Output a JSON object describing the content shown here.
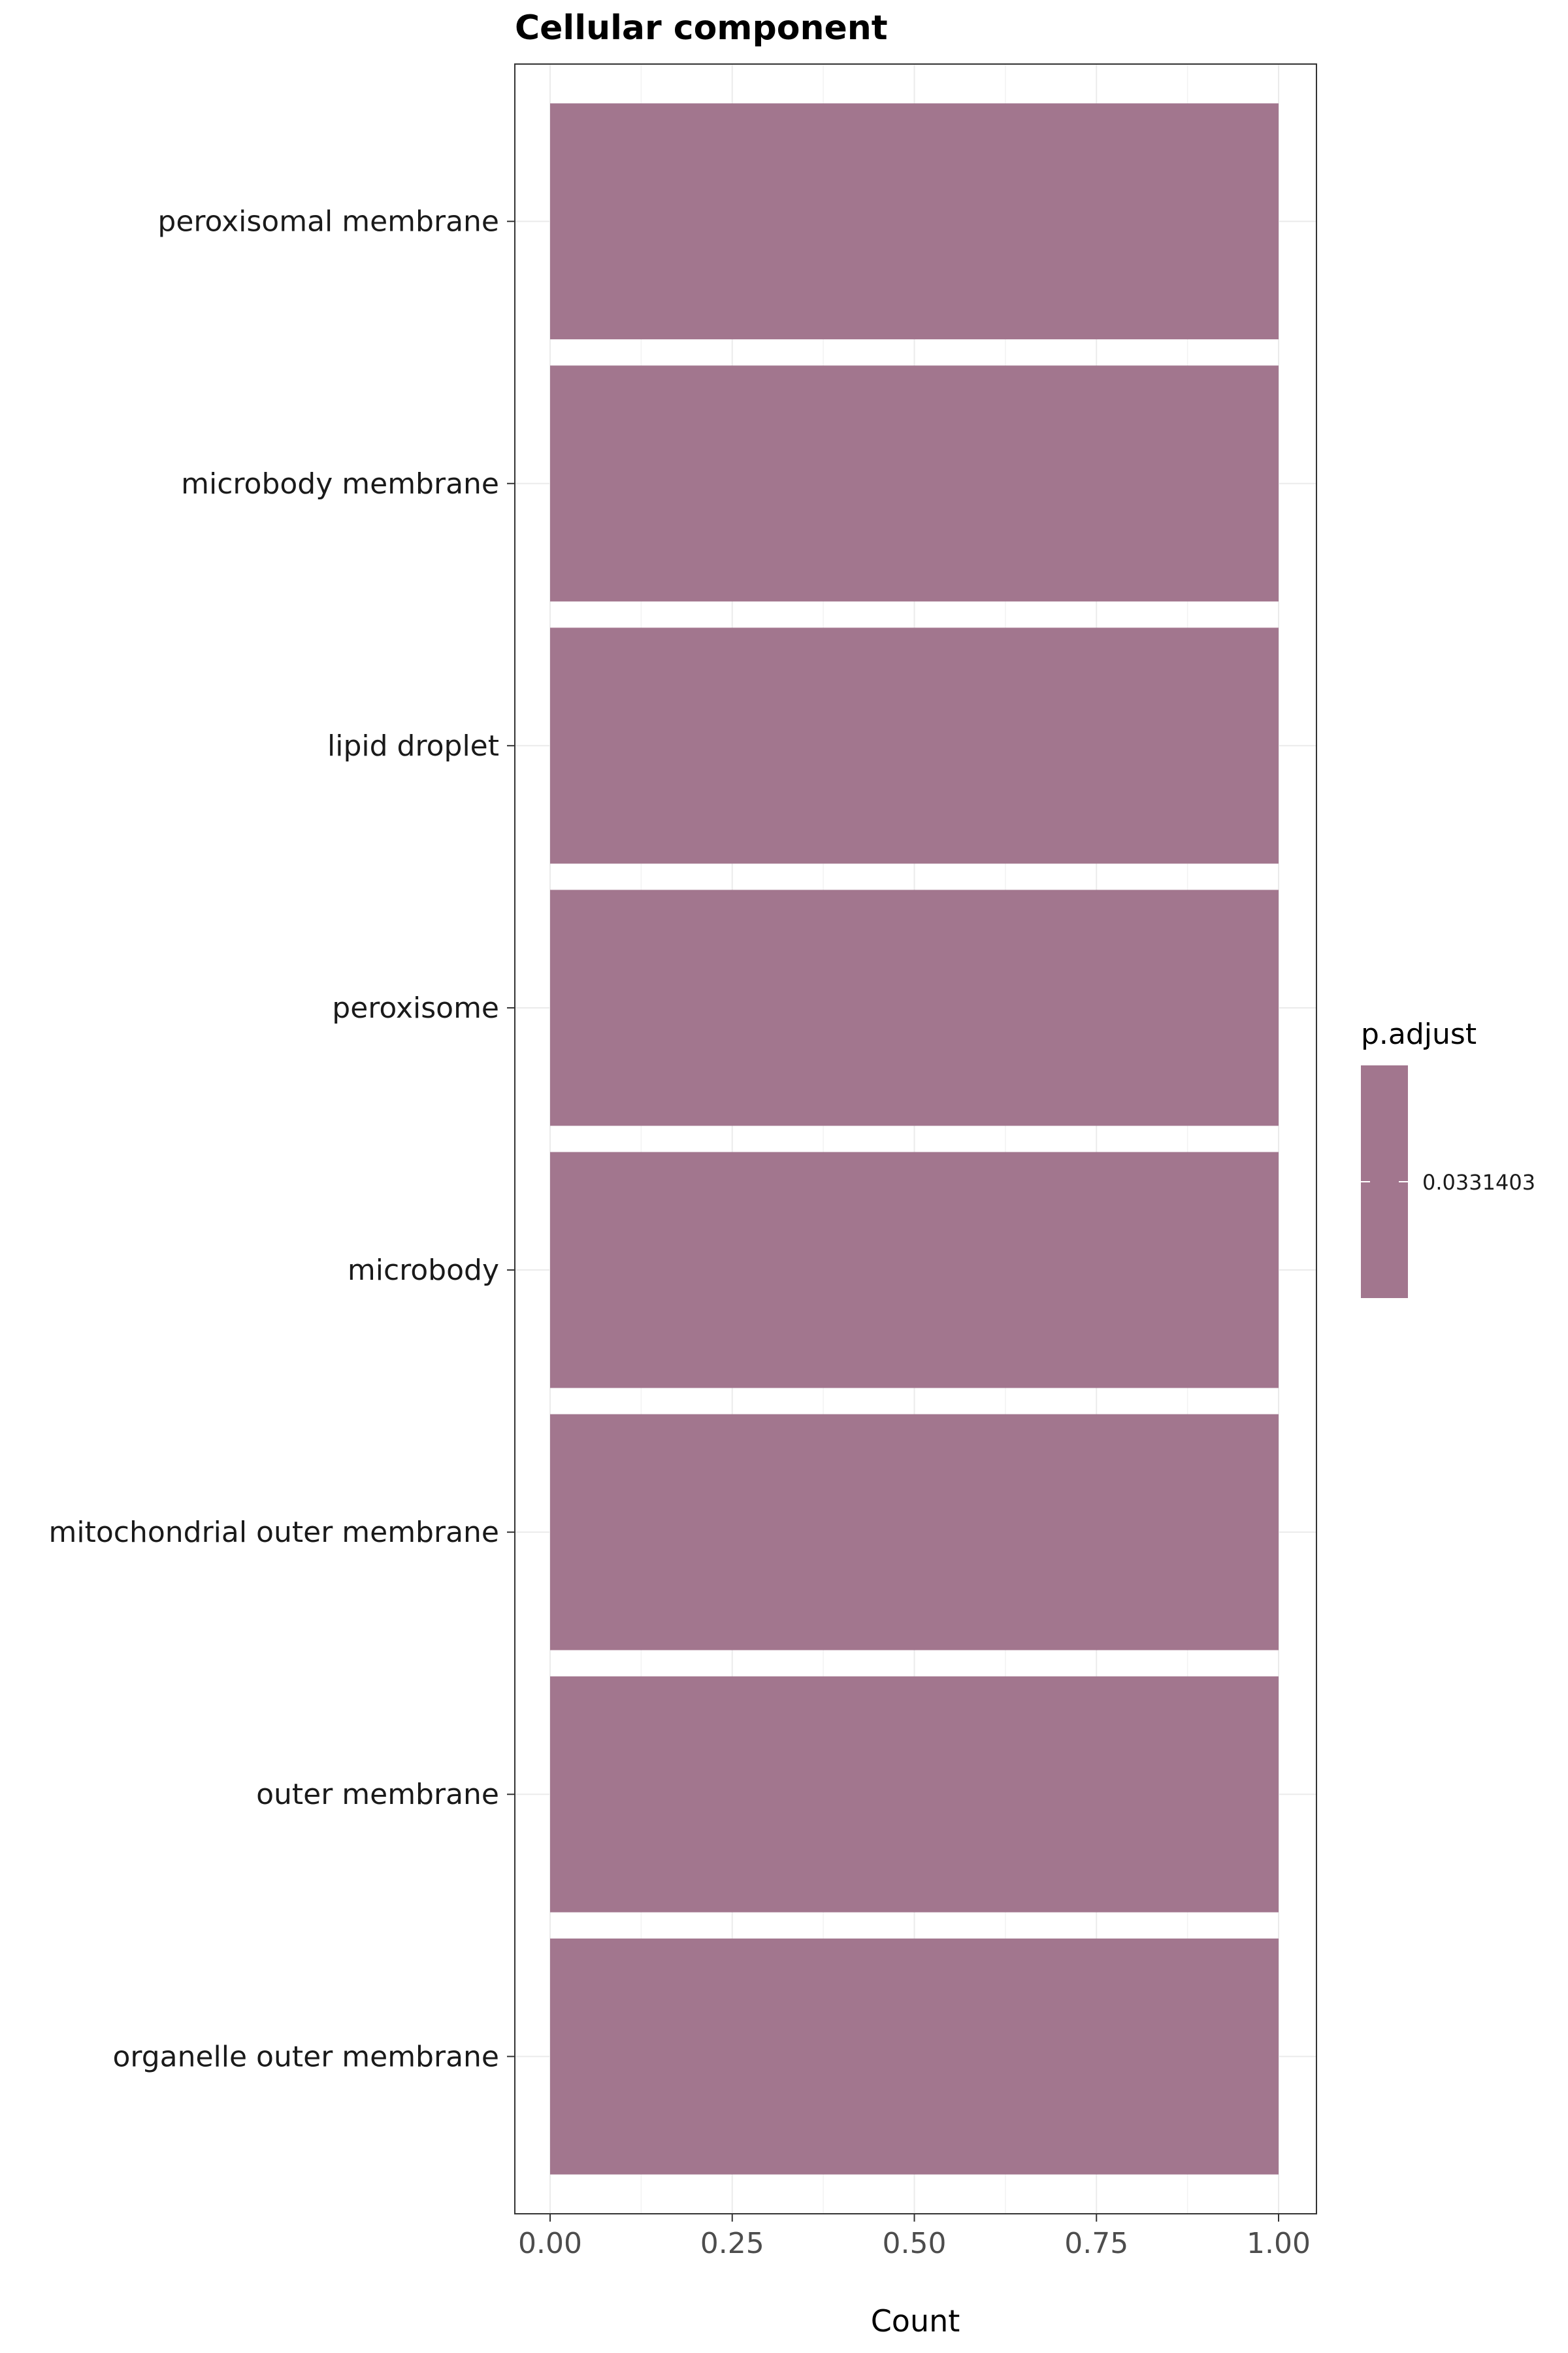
{
  "chart_data": {
    "type": "bar",
    "orientation": "horizontal",
    "title": "Cellular component",
    "xlabel": "Count",
    "ylabel": "",
    "xlim": [
      0,
      1
    ],
    "xticks": [
      "0.00",
      "0.25",
      "0.50",
      "0.75",
      "1.00"
    ],
    "categories": [
      "peroxisomal membrane",
      "microbody membrane",
      "lipid droplet",
      "peroxisome",
      "microbody",
      "mitochondrial outer membrane",
      "outer membrane",
      "organelle outer membrane"
    ],
    "values": [
      1,
      1,
      1,
      1,
      1,
      1,
      1,
      1
    ],
    "bar_color": "#a2768e",
    "grid": true,
    "legend": {
      "title": "p.adjust",
      "label": "0.0331403",
      "placement": "right"
    }
  }
}
